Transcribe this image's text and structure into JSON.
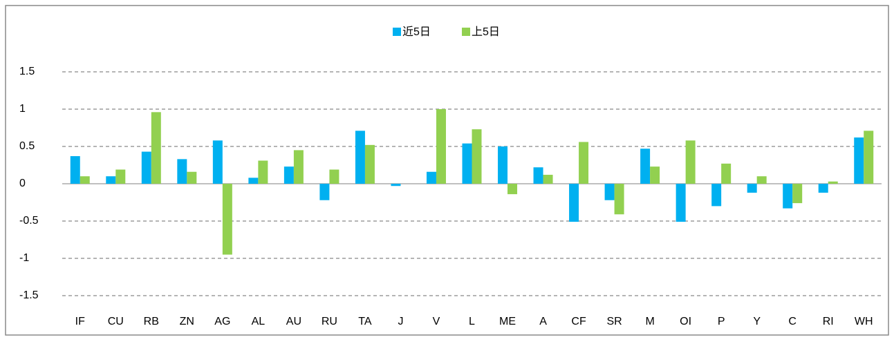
{
  "chart_data": {
    "type": "bar",
    "categories": [
      "IF",
      "CU",
      "RB",
      "ZN",
      "AG",
      "AL",
      "AU",
      "RU",
      "TA",
      "J",
      "V",
      "L",
      "ME",
      "A",
      "CF",
      "SR",
      "M",
      "OI",
      "P",
      "Y",
      "C",
      "RI",
      "WH"
    ],
    "series": [
      {
        "name": "近5日",
        "color": "#00b0f0",
        "values": [
          0.37,
          0.1,
          0.43,
          0.33,
          0.58,
          0.08,
          0.23,
          -0.22,
          0.71,
          -0.03,
          0.16,
          0.54,
          0.5,
          0.22,
          -0.51,
          -0.22,
          0.47,
          -0.51,
          -0.3,
          -0.12,
          -0.33,
          -0.12,
          0.62
        ]
      },
      {
        "name": "上5日",
        "color": "#92d050",
        "values": [
          0.1,
          0.19,
          0.96,
          0.16,
          -0.95,
          0.31,
          0.45,
          0.19,
          0.52,
          0,
          1.0,
          0.73,
          -0.14,
          0.12,
          0.56,
          -0.41,
          0.23,
          0.58,
          0.27,
          0.1,
          -0.26,
          0.03,
          0.71
        ]
      }
    ],
    "ylim": [
      -1.5,
      1.5
    ],
    "yticks": [
      -1.5,
      -1,
      -0.5,
      0,
      0.5,
      1,
      1.5
    ],
    "grid": true,
    "legend": "top"
  }
}
